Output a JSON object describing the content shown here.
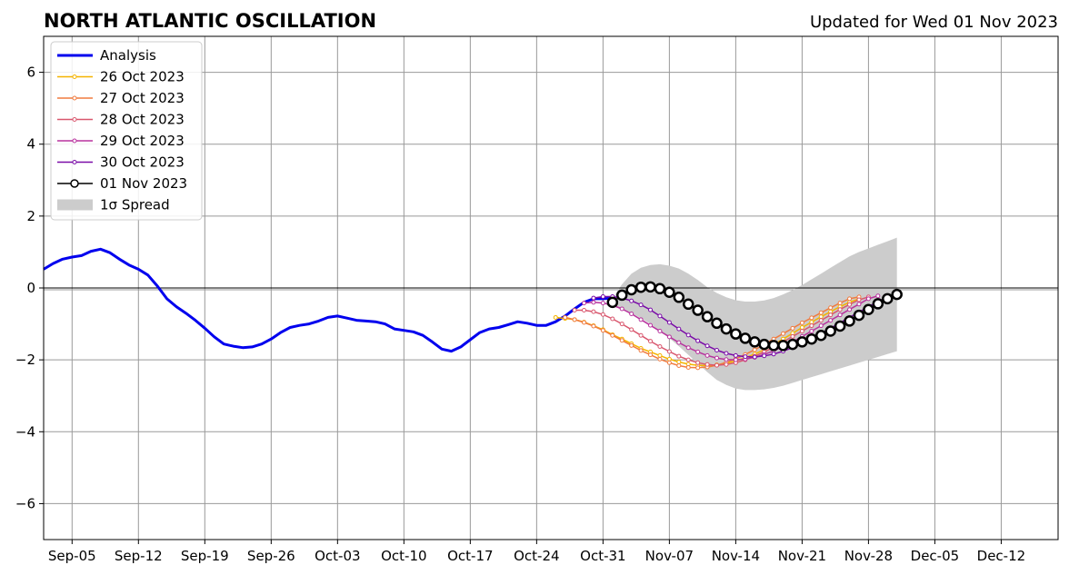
{
  "chart_data": {
    "type": "line",
    "title": "NORTH ATLANTIC OSCILLATION",
    "subtitle": "Updated for Wed 01 Nov 2023",
    "xlabel": "",
    "ylabel": "",
    "x_tick_labels": [
      "Sep-05",
      "Sep-12",
      "Sep-19",
      "Sep-26",
      "Oct-03",
      "Oct-10",
      "Oct-17",
      "Oct-24",
      "Oct-31",
      "Nov-07",
      "Nov-14",
      "Nov-21",
      "Nov-28",
      "Dec-05",
      "Dec-12"
    ],
    "y_tick_labels": [
      "−6",
      "−4",
      "−2",
      "0",
      "2",
      "4",
      "6"
    ],
    "y_ticks": [
      -6,
      -4,
      -2,
      0,
      2,
      4,
      6
    ],
    "xlim": [
      "2023-09-02",
      "2023-12-18"
    ],
    "ylim": [
      -7,
      7
    ],
    "grid": true,
    "legend_position": "upper-left",
    "series": [
      {
        "name": "Analysis",
        "color": "#0000ee",
        "style": "analysis",
        "start": "2023-09-02",
        "values": [
          0.52,
          0.68,
          0.8,
          0.86,
          0.9,
          1.02,
          1.08,
          0.98,
          0.8,
          0.64,
          0.52,
          0.36,
          0.05,
          -0.3,
          -0.52,
          -0.7,
          -0.9,
          -1.12,
          -1.36,
          -1.56,
          -1.62,
          -1.66,
          -1.64,
          -1.56,
          -1.42,
          -1.24,
          -1.1,
          -1.04,
          -1.0,
          -0.92,
          -0.82,
          -0.78,
          -0.84,
          -0.9,
          -0.92,
          -0.94,
          -1.0,
          -1.14,
          -1.18,
          -1.22,
          -1.32,
          -1.5,
          -1.7,
          -1.76,
          -1.64,
          -1.44,
          -1.24,
          -1.14,
          -1.1,
          -1.02,
          -0.94,
          -0.98,
          -1.04,
          -1.04,
          -0.94,
          -0.78,
          -0.58,
          -0.4,
          -0.3,
          -0.3,
          -0.28
        ]
      },
      {
        "name": "26 Oct 2023",
        "color": "#f4b400",
        "style": "forecast",
        "start": "2023-10-26",
        "values": [
          -0.82,
          -0.85,
          -0.88,
          -0.95,
          -1.05,
          -1.16,
          -1.3,
          -1.42,
          -1.55,
          -1.68,
          -1.78,
          -1.88,
          -1.98,
          -2.06,
          -2.12,
          -2.15,
          -2.16,
          -2.14,
          -2.1,
          -2.03,
          -1.94,
          -1.84,
          -1.72,
          -1.58,
          -1.42,
          -1.26,
          -1.1,
          -0.95,
          -0.8,
          -0.66,
          -0.52,
          -0.4,
          -0.3
        ]
      },
      {
        "name": "27 Oct 2023",
        "color": "#f07b3f",
        "style": "forecast",
        "start": "2023-10-27",
        "values": [
          -0.82,
          -0.88,
          -0.96,
          -1.06,
          -1.18,
          -1.32,
          -1.46,
          -1.6,
          -1.74,
          -1.86,
          -1.98,
          -2.08,
          -2.16,
          -2.21,
          -2.22,
          -2.2,
          -2.15,
          -2.07,
          -1.97,
          -1.85,
          -1.72,
          -1.57,
          -1.42,
          -1.27,
          -1.12,
          -0.97,
          -0.83,
          -0.69,
          -0.55,
          -0.42,
          -0.3,
          -0.25
        ]
      },
      {
        "name": "28 Oct 2023",
        "color": "#d9576e",
        "style": "forecast",
        "start": "2023-10-28",
        "values": [
          -0.62,
          -0.62,
          -0.66,
          -0.74,
          -0.86,
          -1.0,
          -1.16,
          -1.32,
          -1.48,
          -1.63,
          -1.77,
          -1.9,
          -2.0,
          -2.08,
          -2.13,
          -2.15,
          -2.13,
          -2.08,
          -2.0,
          -1.9,
          -1.78,
          -1.65,
          -1.5,
          -1.35,
          -1.2,
          -1.05,
          -0.9,
          -0.75,
          -0.6,
          -0.46,
          -0.33,
          -0.25
        ]
      },
      {
        "name": "29 Oct 2023",
        "color": "#b8329e",
        "style": "forecast",
        "start": "2023-10-29",
        "values": [
          -0.42,
          -0.4,
          -0.42,
          -0.48,
          -0.58,
          -0.72,
          -0.88,
          -1.04,
          -1.2,
          -1.36,
          -1.52,
          -1.66,
          -1.78,
          -1.88,
          -1.95,
          -1.99,
          -2.0,
          -1.98,
          -1.93,
          -1.85,
          -1.75,
          -1.63,
          -1.5,
          -1.35,
          -1.2,
          -1.05,
          -0.9,
          -0.75,
          -0.6,
          -0.45,
          -0.3,
          -0.22
        ]
      },
      {
        "name": "30 Oct 2023",
        "color": "#7a0ca8",
        "style": "forecast",
        "start": "2023-10-30",
        "values": [
          -0.28,
          -0.24,
          -0.24,
          -0.28,
          -0.36,
          -0.47,
          -0.61,
          -0.78,
          -0.96,
          -1.14,
          -1.31,
          -1.47,
          -1.61,
          -1.73,
          -1.82,
          -1.88,
          -1.91,
          -1.92,
          -1.89,
          -1.84,
          -1.76,
          -1.66,
          -1.54,
          -1.41,
          -1.27,
          -1.12,
          -0.97,
          -0.82,
          -0.67,
          -0.52,
          -0.38,
          -0.25
        ]
      },
      {
        "name": "01 Nov 2023",
        "color": "#000000",
        "style": "circles",
        "start": "2023-11-01",
        "values": [
          -0.4,
          -0.2,
          -0.05,
          0.02,
          0.03,
          -0.02,
          -0.12,
          -0.26,
          -0.45,
          -0.62,
          -0.8,
          -0.98,
          -1.14,
          -1.28,
          -1.4,
          -1.5,
          -1.57,
          -1.6,
          -1.6,
          -1.57,
          -1.5,
          -1.42,
          -1.32,
          -1.2,
          -1.06,
          -0.92,
          -0.76,
          -0.6,
          -0.44,
          -0.3,
          -0.18
        ]
      },
      {
        "name": "1σ Spread",
        "color": "#cccccc",
        "style": "band",
        "start": "2023-11-01",
        "upper": [
          -0.3,
          0.1,
          0.4,
          0.56,
          0.64,
          0.66,
          0.62,
          0.54,
          0.4,
          0.22,
          0.02,
          -0.14,
          -0.26,
          -0.34,
          -0.38,
          -0.38,
          -0.35,
          -0.28,
          -0.18,
          -0.06,
          0.08,
          0.24,
          0.4,
          0.56,
          0.72,
          0.88,
          1.0,
          1.1,
          1.2,
          1.3,
          1.4
        ],
        "lower": [
          -0.5,
          -0.6,
          -0.7,
          -0.84,
          -1.0,
          -1.2,
          -1.4,
          -1.62,
          -1.86,
          -2.1,
          -2.34,
          -2.56,
          -2.7,
          -2.8,
          -2.84,
          -2.84,
          -2.82,
          -2.78,
          -2.72,
          -2.64,
          -2.56,
          -2.48,
          -2.4,
          -2.32,
          -2.24,
          -2.16,
          -2.08,
          -2.0,
          -1.92,
          -1.84,
          -1.76
        ]
      }
    ]
  }
}
